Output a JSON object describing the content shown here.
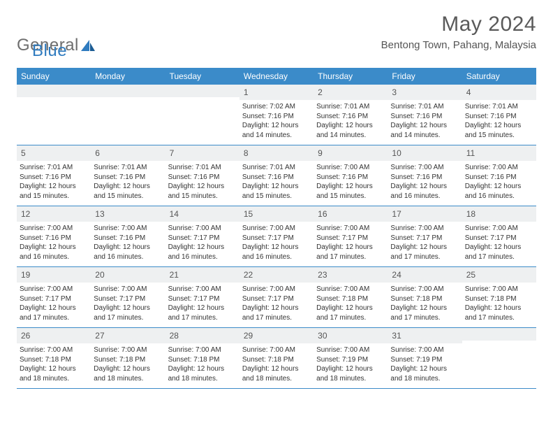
{
  "brand": {
    "name_part1": "General",
    "name_part2": "Blue"
  },
  "header": {
    "month_title": "May 2024",
    "location": "Bentong Town, Pahang, Malaysia"
  },
  "colors": {
    "header_bar": "#3b8bc9",
    "daynum_bg": "#eef0f1",
    "week_divider": "#3b8bc9",
    "text": "#333333",
    "title_text": "#5a5a5a",
    "logo_gray": "#6e6e6e",
    "logo_blue": "#2f7bbf",
    "background": "#ffffff"
  },
  "typography": {
    "title_fontsize": 30,
    "location_fontsize": 15,
    "weekday_fontsize": 12,
    "daynum_fontsize": 12,
    "detail_fontsize": 10,
    "font_family": "Arial"
  },
  "calendar": {
    "type": "table",
    "weekdays": [
      "Sunday",
      "Monday",
      "Tuesday",
      "Wednesday",
      "Thursday",
      "Friday",
      "Saturday"
    ],
    "weeks": [
      [
        {
          "day": "",
          "sunrise": "",
          "sunset": "",
          "daylight": ""
        },
        {
          "day": "",
          "sunrise": "",
          "sunset": "",
          "daylight": ""
        },
        {
          "day": "",
          "sunrise": "",
          "sunset": "",
          "daylight": ""
        },
        {
          "day": "1",
          "sunrise": "Sunrise: 7:02 AM",
          "sunset": "Sunset: 7:16 PM",
          "daylight": "Daylight: 12 hours and 14 minutes."
        },
        {
          "day": "2",
          "sunrise": "Sunrise: 7:01 AM",
          "sunset": "Sunset: 7:16 PM",
          "daylight": "Daylight: 12 hours and 14 minutes."
        },
        {
          "day": "3",
          "sunrise": "Sunrise: 7:01 AM",
          "sunset": "Sunset: 7:16 PM",
          "daylight": "Daylight: 12 hours and 14 minutes."
        },
        {
          "day": "4",
          "sunrise": "Sunrise: 7:01 AM",
          "sunset": "Sunset: 7:16 PM",
          "daylight": "Daylight: 12 hours and 15 minutes."
        }
      ],
      [
        {
          "day": "5",
          "sunrise": "Sunrise: 7:01 AM",
          "sunset": "Sunset: 7:16 PM",
          "daylight": "Daylight: 12 hours and 15 minutes."
        },
        {
          "day": "6",
          "sunrise": "Sunrise: 7:01 AM",
          "sunset": "Sunset: 7:16 PM",
          "daylight": "Daylight: 12 hours and 15 minutes."
        },
        {
          "day": "7",
          "sunrise": "Sunrise: 7:01 AM",
          "sunset": "Sunset: 7:16 PM",
          "daylight": "Daylight: 12 hours and 15 minutes."
        },
        {
          "day": "8",
          "sunrise": "Sunrise: 7:01 AM",
          "sunset": "Sunset: 7:16 PM",
          "daylight": "Daylight: 12 hours and 15 minutes."
        },
        {
          "day": "9",
          "sunrise": "Sunrise: 7:00 AM",
          "sunset": "Sunset: 7:16 PM",
          "daylight": "Daylight: 12 hours and 15 minutes."
        },
        {
          "day": "10",
          "sunrise": "Sunrise: 7:00 AM",
          "sunset": "Sunset: 7:16 PM",
          "daylight": "Daylight: 12 hours and 16 minutes."
        },
        {
          "day": "11",
          "sunrise": "Sunrise: 7:00 AM",
          "sunset": "Sunset: 7:16 PM",
          "daylight": "Daylight: 12 hours and 16 minutes."
        }
      ],
      [
        {
          "day": "12",
          "sunrise": "Sunrise: 7:00 AM",
          "sunset": "Sunset: 7:16 PM",
          "daylight": "Daylight: 12 hours and 16 minutes."
        },
        {
          "day": "13",
          "sunrise": "Sunrise: 7:00 AM",
          "sunset": "Sunset: 7:16 PM",
          "daylight": "Daylight: 12 hours and 16 minutes."
        },
        {
          "day": "14",
          "sunrise": "Sunrise: 7:00 AM",
          "sunset": "Sunset: 7:17 PM",
          "daylight": "Daylight: 12 hours and 16 minutes."
        },
        {
          "day": "15",
          "sunrise": "Sunrise: 7:00 AM",
          "sunset": "Sunset: 7:17 PM",
          "daylight": "Daylight: 12 hours and 16 minutes."
        },
        {
          "day": "16",
          "sunrise": "Sunrise: 7:00 AM",
          "sunset": "Sunset: 7:17 PM",
          "daylight": "Daylight: 12 hours and 17 minutes."
        },
        {
          "day": "17",
          "sunrise": "Sunrise: 7:00 AM",
          "sunset": "Sunset: 7:17 PM",
          "daylight": "Daylight: 12 hours and 17 minutes."
        },
        {
          "day": "18",
          "sunrise": "Sunrise: 7:00 AM",
          "sunset": "Sunset: 7:17 PM",
          "daylight": "Daylight: 12 hours and 17 minutes."
        }
      ],
      [
        {
          "day": "19",
          "sunrise": "Sunrise: 7:00 AM",
          "sunset": "Sunset: 7:17 PM",
          "daylight": "Daylight: 12 hours and 17 minutes."
        },
        {
          "day": "20",
          "sunrise": "Sunrise: 7:00 AM",
          "sunset": "Sunset: 7:17 PM",
          "daylight": "Daylight: 12 hours and 17 minutes."
        },
        {
          "day": "21",
          "sunrise": "Sunrise: 7:00 AM",
          "sunset": "Sunset: 7:17 PM",
          "daylight": "Daylight: 12 hours and 17 minutes."
        },
        {
          "day": "22",
          "sunrise": "Sunrise: 7:00 AM",
          "sunset": "Sunset: 7:17 PM",
          "daylight": "Daylight: 12 hours and 17 minutes."
        },
        {
          "day": "23",
          "sunrise": "Sunrise: 7:00 AM",
          "sunset": "Sunset: 7:18 PM",
          "daylight": "Daylight: 12 hours and 17 minutes."
        },
        {
          "day": "24",
          "sunrise": "Sunrise: 7:00 AM",
          "sunset": "Sunset: 7:18 PM",
          "daylight": "Daylight: 12 hours and 17 minutes."
        },
        {
          "day": "25",
          "sunrise": "Sunrise: 7:00 AM",
          "sunset": "Sunset: 7:18 PM",
          "daylight": "Daylight: 12 hours and 17 minutes."
        }
      ],
      [
        {
          "day": "26",
          "sunrise": "Sunrise: 7:00 AM",
          "sunset": "Sunset: 7:18 PM",
          "daylight": "Daylight: 12 hours and 18 minutes."
        },
        {
          "day": "27",
          "sunrise": "Sunrise: 7:00 AM",
          "sunset": "Sunset: 7:18 PM",
          "daylight": "Daylight: 12 hours and 18 minutes."
        },
        {
          "day": "28",
          "sunrise": "Sunrise: 7:00 AM",
          "sunset": "Sunset: 7:18 PM",
          "daylight": "Daylight: 12 hours and 18 minutes."
        },
        {
          "day": "29",
          "sunrise": "Sunrise: 7:00 AM",
          "sunset": "Sunset: 7:18 PM",
          "daylight": "Daylight: 12 hours and 18 minutes."
        },
        {
          "day": "30",
          "sunrise": "Sunrise: 7:00 AM",
          "sunset": "Sunset: 7:19 PM",
          "daylight": "Daylight: 12 hours and 18 minutes."
        },
        {
          "day": "31",
          "sunrise": "Sunrise: 7:00 AM",
          "sunset": "Sunset: 7:19 PM",
          "daylight": "Daylight: 12 hours and 18 minutes."
        },
        {
          "day": "",
          "sunrise": "",
          "sunset": "",
          "daylight": ""
        }
      ]
    ]
  }
}
